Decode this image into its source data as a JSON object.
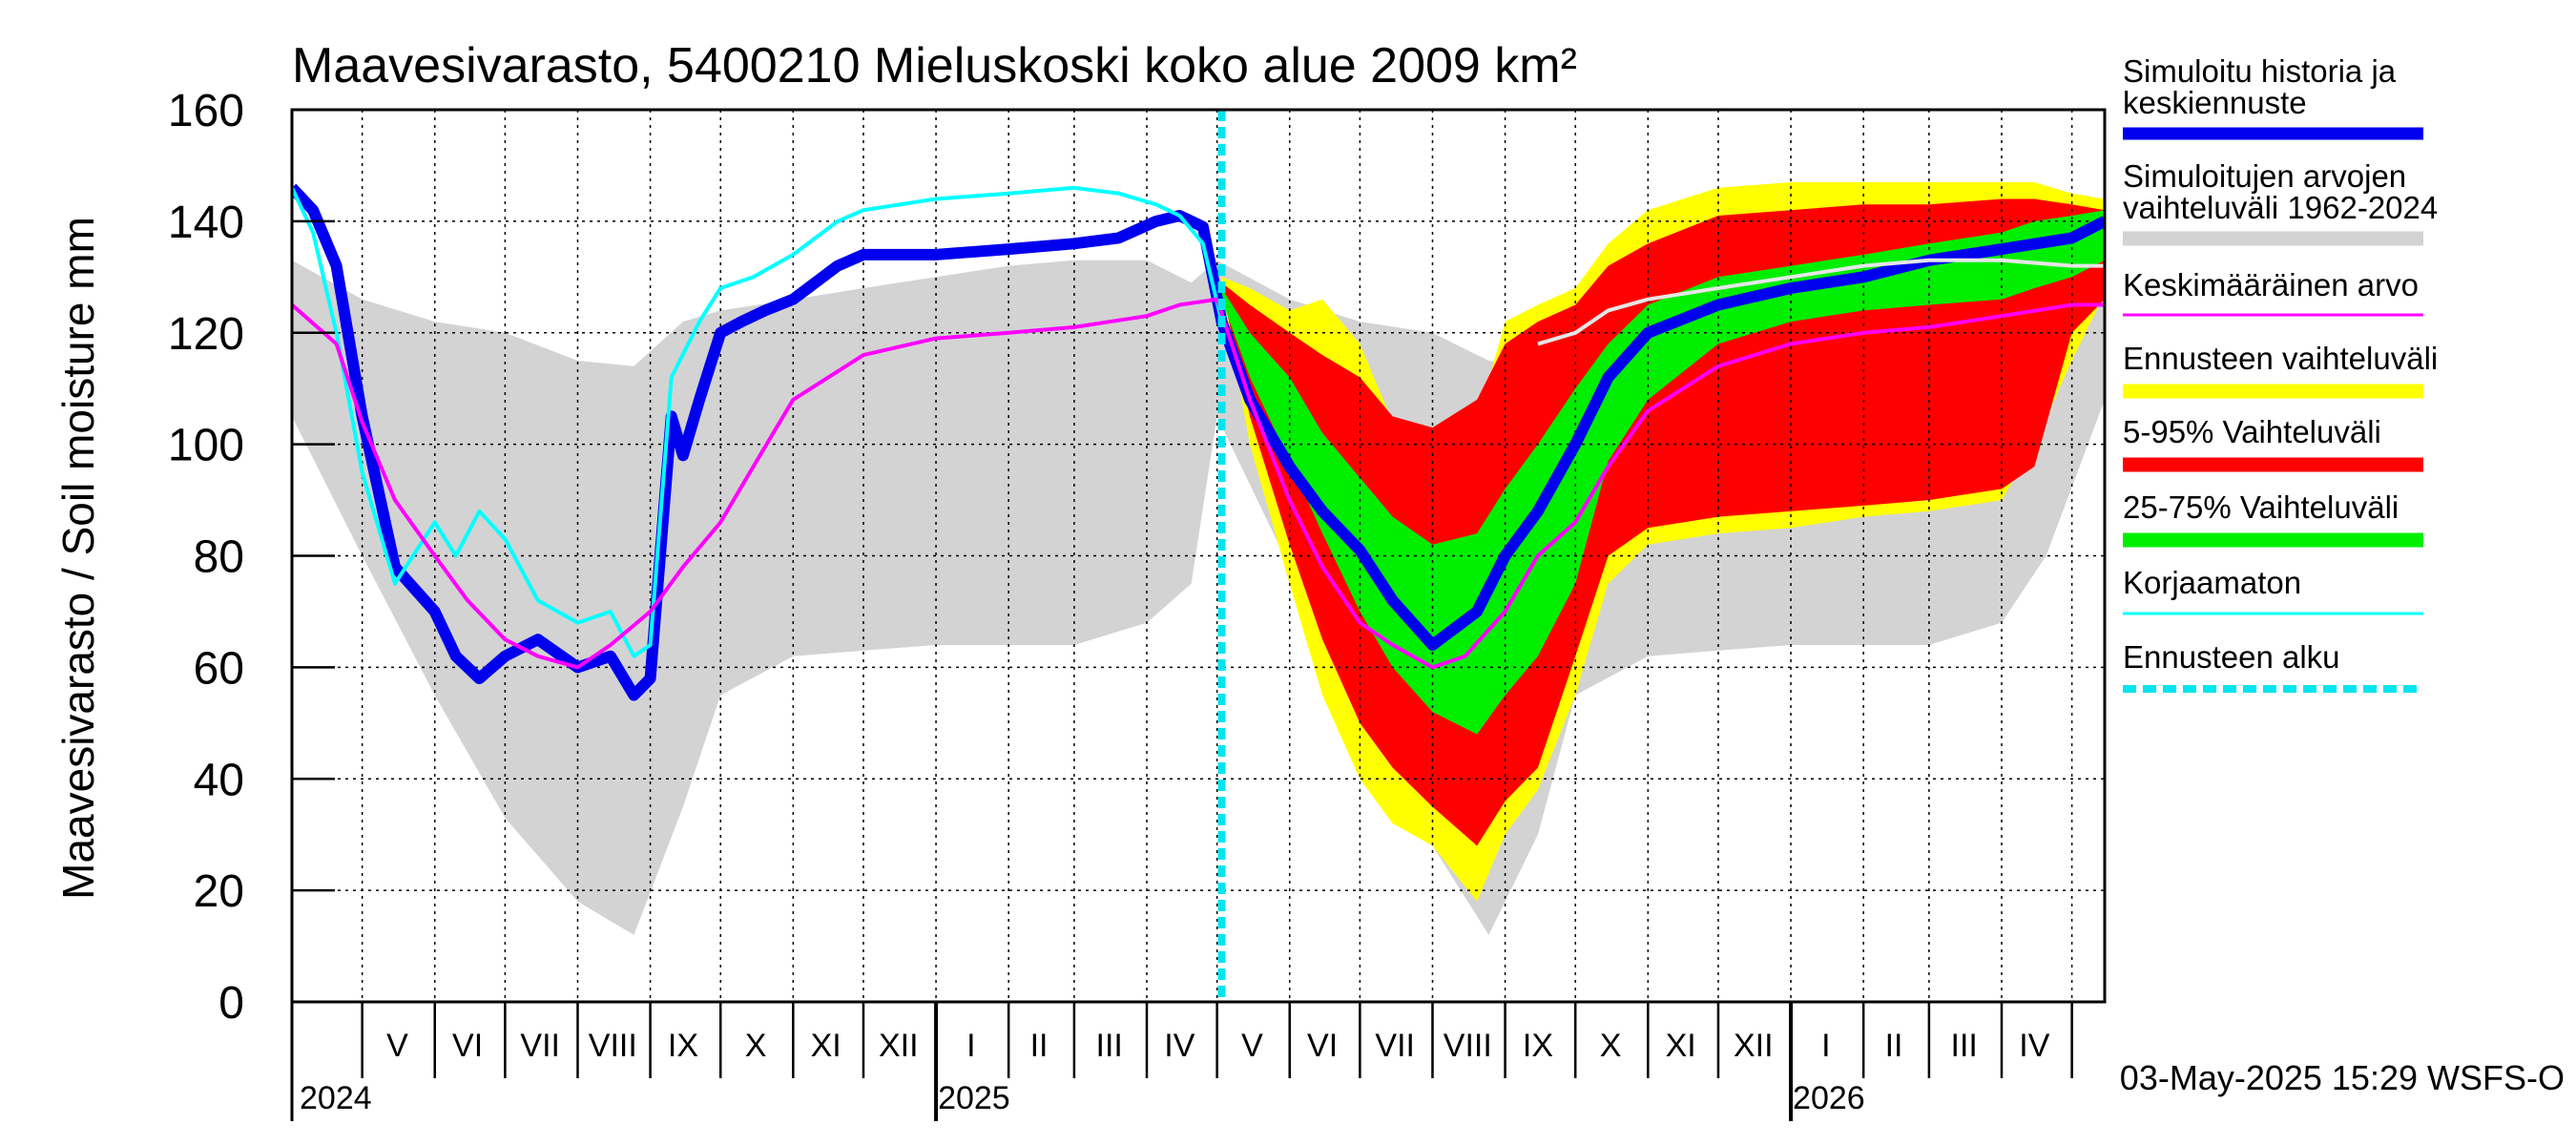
{
  "chart_data": {
    "type": "area",
    "title": "Maavesivarasto, 5400210 Mieluskoski koko alue 2009 km²",
    "ylabel": "Maavesivarasto / Soil moisture   mm",
    "ylim": [
      0,
      160
    ],
    "yticks": [
      0,
      20,
      40,
      60,
      80,
      100,
      120,
      140,
      160
    ],
    "grid": true,
    "legend_position": "right",
    "x_range": [
      "2024-04-01",
      "2026-05-15"
    ],
    "forecast_start": "2025-05-03",
    "timestamp": "03-May-2025 15:29 WSFS-O",
    "x_axis": {
      "month_labels": [
        {
          "label": "V",
          "date": "2024-05-16"
        },
        {
          "label": "VI",
          "date": "2024-06-15"
        },
        {
          "label": "VII",
          "date": "2024-07-16"
        },
        {
          "label": "VIII",
          "date": "2024-08-16"
        },
        {
          "label": "IX",
          "date": "2024-09-15"
        },
        {
          "label": "X",
          "date": "2024-10-16"
        },
        {
          "label": "XI",
          "date": "2024-11-15"
        },
        {
          "label": "XII",
          "date": "2024-12-16"
        },
        {
          "label": "I",
          "date": "2025-01-16"
        },
        {
          "label": "II",
          "date": "2025-02-14"
        },
        {
          "label": "III",
          "date": "2025-03-16"
        },
        {
          "label": "IV",
          "date": "2025-04-15"
        },
        {
          "label": "V",
          "date": "2025-05-16"
        },
        {
          "label": "VI",
          "date": "2025-06-15"
        },
        {
          "label": "VII",
          "date": "2025-07-16"
        },
        {
          "label": "VIII",
          "date": "2025-08-16"
        },
        {
          "label": "IX",
          "date": "2025-09-15"
        },
        {
          "label": "X",
          "date": "2025-10-16"
        },
        {
          "label": "XI",
          "date": "2025-11-15"
        },
        {
          "label": "XII",
          "date": "2025-12-16"
        },
        {
          "label": "I",
          "date": "2026-01-16"
        },
        {
          "label": "II",
          "date": "2026-02-14"
        },
        {
          "label": "III",
          "date": "2026-03-16"
        },
        {
          "label": "IV",
          "date": "2026-04-15"
        }
      ],
      "year_labels": [
        {
          "label": "2024",
          "date": "2024-04-01"
        },
        {
          "label": "2025",
          "date": "2025-01-01"
        },
        {
          "label": "2026",
          "date": "2026-01-01"
        }
      ]
    },
    "legend": [
      {
        "label": "Simuloitu historia ja keskiennuste",
        "color": "#0000ee",
        "kind": "line-thick"
      },
      {
        "label": "Simuloitujen arvojen vaihteluväli 1962-2024",
        "color": "#d3d3d3",
        "kind": "band"
      },
      {
        "label": "Keskimääräinen arvo",
        "color": "#ff00ff",
        "kind": "line"
      },
      {
        "label": "Ennusteen vaihteluväli",
        "color": "#ffff00",
        "kind": "band"
      },
      {
        "label": "5-95% Vaihteluväli",
        "color": "#ff0000",
        "kind": "band"
      },
      {
        "label": "25-75% Vaihteluväli",
        "color": "#00ee00",
        "kind": "band"
      },
      {
        "label": "Korjaamaton",
        "color": "#00ffff",
        "kind": "line"
      },
      {
        "label": "Ennusteen alku",
        "color": "#00e5ee",
        "kind": "dashed"
      }
    ],
    "series": [
      {
        "name": "Simuloitujen arvojen vaihteluväli 1962-2024",
        "type": "band",
        "color": "#d3d3d3",
        "x": [
          "2024-04-01",
          "2024-05-01",
          "2024-06-01",
          "2024-07-01",
          "2024-08-01",
          "2024-08-25",
          "2024-09-15",
          "2024-10-01",
          "2024-11-01",
          "2024-12-01",
          "2025-01-01",
          "2025-02-01",
          "2025-03-01",
          "2025-04-01",
          "2025-04-20",
          "2025-05-01",
          "2025-06-01",
          "2025-07-01",
          "2025-08-01",
          "2025-08-25",
          "2025-09-15",
          "2025-10-01",
          "2025-11-01",
          "2025-12-01",
          "2026-01-01",
          "2026-02-01",
          "2026-03-01",
          "2026-04-01",
          "2026-04-20",
          "2026-05-15"
        ],
        "low": [
          105,
          80,
          55,
          33,
          18,
          12,
          35,
          55,
          62,
          63,
          64,
          64,
          64,
          68,
          75,
          105,
          78,
          55,
          28,
          12,
          30,
          55,
          62,
          63,
          64,
          64,
          64,
          68,
          80,
          108
        ],
        "high": [
          133,
          126,
          122,
          120,
          115,
          114,
          122,
          124,
          126,
          128,
          130,
          132,
          133,
          133,
          129,
          133,
          126,
          122,
          120,
          115,
          114,
          122,
          124,
          126,
          128,
          130,
          132,
          133,
          131,
          132
        ]
      },
      {
        "name": "Ennusteen vaihteluväli",
        "type": "band",
        "color": "#ffff00",
        "x": [
          "2025-05-03",
          "2025-05-15",
          "2025-06-01",
          "2025-06-15",
          "2025-07-01",
          "2025-07-15",
          "2025-08-01",
          "2025-08-20",
          "2025-09-01",
          "2025-09-15",
          "2025-10-01",
          "2025-10-15",
          "2025-11-01",
          "2025-12-01",
          "2026-01-01",
          "2026-02-01",
          "2026-03-01",
          "2026-04-01",
          "2026-04-15",
          "2026-05-01",
          "2026-05-15"
        ],
        "low": [
          128,
          100,
          75,
          55,
          40,
          32,
          28,
          18,
          30,
          38,
          55,
          75,
          82,
          84,
          85,
          87,
          88,
          90,
          100,
          115,
          127
        ],
        "high": [
          130,
          128,
          124,
          126,
          118,
          104,
          100,
          104,
          122,
          125,
          128,
          136,
          142,
          146,
          147,
          147,
          147,
          147,
          147,
          145,
          144
        ]
      },
      {
        "name": "5-95% Vaihteluväli",
        "type": "band",
        "color": "#ff0000",
        "x": [
          "2025-05-03",
          "2025-05-15",
          "2025-06-01",
          "2025-06-15",
          "2025-07-01",
          "2025-07-15",
          "2025-08-01",
          "2025-08-20",
          "2025-09-01",
          "2025-09-15",
          "2025-10-01",
          "2025-10-15",
          "2025-11-01",
          "2025-12-01",
          "2026-01-01",
          "2026-02-01",
          "2026-03-01",
          "2026-04-01",
          "2026-04-15",
          "2026-05-01",
          "2026-05-15"
        ],
        "low": [
          128,
          105,
          82,
          65,
          50,
          42,
          35,
          28,
          36,
          42,
          62,
          80,
          85,
          87,
          88,
          89,
          90,
          92,
          96,
          120,
          126
        ],
        "high": [
          129,
          125,
          120,
          116,
          112,
          105,
          103,
          108,
          118,
          122,
          125,
          132,
          136,
          141,
          142,
          143,
          143,
          144,
          144,
          143,
          142
        ]
      },
      {
        "name": "25-75% Vaihteluväli",
        "type": "band",
        "color": "#00ee00",
        "x": [
          "2025-05-03",
          "2025-05-15",
          "2025-06-01",
          "2025-06-15",
          "2025-07-01",
          "2025-07-15",
          "2025-08-01",
          "2025-08-20",
          "2025-09-01",
          "2025-09-15",
          "2025-10-01",
          "2025-10-15",
          "2025-11-01",
          "2025-12-01",
          "2026-01-01",
          "2026-02-01",
          "2026-03-01",
          "2026-04-01",
          "2026-04-15",
          "2026-05-01",
          "2026-05-15"
        ],
        "low": [
          126,
          112,
          97,
          84,
          70,
          60,
          52,
          48,
          55,
          62,
          75,
          97,
          108,
          118,
          122,
          124,
          125,
          126,
          128,
          130,
          133
        ],
        "high": [
          128,
          120,
          112,
          102,
          94,
          87,
          82,
          84,
          92,
          100,
          110,
          118,
          125,
          130,
          132,
          134,
          136,
          138,
          140,
          141,
          142
        ]
      },
      {
        "name": "Simuloitu historia ja keskiennuste",
        "type": "line",
        "color": "#0000ee",
        "width": 12,
        "x": [
          "2024-04-01",
          "2024-04-10",
          "2024-04-20",
          "2024-05-01",
          "2024-05-15",
          "2024-06-01",
          "2024-06-10",
          "2024-06-20",
          "2024-07-01",
          "2024-07-15",
          "2024-08-01",
          "2024-08-15",
          "2024-08-25",
          "2024-09-01",
          "2024-09-10",
          "2024-09-15",
          "2024-09-22",
          "2024-10-01",
          "2024-10-10",
          "2024-10-20",
          "2024-11-01",
          "2024-11-20",
          "2024-12-01",
          "2025-01-01",
          "2025-02-01",
          "2025-03-01",
          "2025-03-20",
          "2025-04-05",
          "2025-04-15",
          "2025-04-25",
          "2025-05-03",
          "2025-05-15",
          "2025-06-01",
          "2025-06-15",
          "2025-07-01",
          "2025-07-15",
          "2025-08-01",
          "2025-08-20",
          "2025-09-01",
          "2025-09-15",
          "2025-10-01",
          "2025-10-15",
          "2025-11-01",
          "2025-12-01",
          "2026-01-01",
          "2026-02-01",
          "2026-03-01",
          "2026-04-01",
          "2026-05-01",
          "2026-05-15"
        ],
        "y": [
          146,
          142,
          132,
          105,
          78,
          70,
          62,
          58,
          62,
          65,
          60,
          62,
          55,
          58,
          105,
          98,
          108,
          120,
          122,
          124,
          126,
          132,
          134,
          134,
          135,
          136,
          137,
          140,
          141,
          139,
          122,
          108,
          96,
          88,
          81,
          72,
          64,
          70,
          80,
          88,
          100,
          112,
          120,
          125,
          128,
          130,
          133,
          135,
          137,
          140
        ]
      },
      {
        "name": "Korjaamaton",
        "type": "line",
        "color": "#00ffff",
        "width": 4,
        "x": [
          "2024-04-01",
          "2024-04-10",
          "2024-04-20",
          "2024-05-01",
          "2024-05-15",
          "2024-06-01",
          "2024-06-10",
          "2024-06-20",
          "2024-07-01",
          "2024-07-15",
          "2024-08-01",
          "2024-08-15",
          "2024-08-25",
          "2024-09-01",
          "2024-09-10",
          "2024-09-22",
          "2024-10-01",
          "2024-10-15",
          "2024-11-01",
          "2024-11-20",
          "2024-12-01",
          "2025-01-01",
          "2025-02-01",
          "2025-03-01",
          "2025-03-20",
          "2025-04-05",
          "2025-04-15",
          "2025-04-25",
          "2025-05-03"
        ],
        "y": [
          146,
          138,
          120,
          95,
          75,
          86,
          80,
          88,
          83,
          72,
          68,
          70,
          62,
          64,
          112,
          122,
          128,
          130,
          134,
          140,
          142,
          144,
          145,
          146,
          145,
          143,
          141,
          136,
          122
        ]
      },
      {
        "name": "Keskimääräinen arvo",
        "type": "line",
        "color": "#ff00ff",
        "width": 4,
        "x": [
          "2024-04-01",
          "2024-04-20",
          "2024-05-01",
          "2024-05-15",
          "2024-06-01",
          "2024-06-15",
          "2024-07-01",
          "2024-07-15",
          "2024-08-01",
          "2024-08-15",
          "2024-09-01",
          "2024-09-15",
          "2024-10-01",
          "2024-10-15",
          "2024-11-01",
          "2024-12-01",
          "2025-01-01",
          "2025-02-01",
          "2025-03-01",
          "2025-04-01",
          "2025-04-15",
          "2025-05-01",
          "2025-05-15",
          "2025-06-01",
          "2025-06-15",
          "2025-07-01",
          "2025-07-15",
          "2025-08-01",
          "2025-08-15",
          "2025-09-01",
          "2025-09-15",
          "2025-10-01",
          "2025-10-15",
          "2025-11-01",
          "2025-12-01",
          "2026-01-01",
          "2026-02-01",
          "2026-03-01",
          "2026-04-01",
          "2026-05-01",
          "2026-05-15"
        ],
        "y": [
          125,
          118,
          104,
          90,
          80,
          72,
          65,
          62,
          60,
          64,
          70,
          78,
          86,
          96,
          108,
          116,
          119,
          120,
          121,
          123,
          125,
          126,
          108,
          90,
          78,
          68,
          64,
          60,
          62,
          70,
          80,
          86,
          96,
          106,
          114,
          118,
          120,
          121,
          123,
          125,
          125
        ]
      },
      {
        "name": "Keskiarvo (harmaa)",
        "type": "line",
        "color": "#e6e6e6",
        "width": 4,
        "x": [
          "2025-09-15",
          "2025-10-01",
          "2025-10-15",
          "2025-11-01",
          "2025-12-01",
          "2026-01-01",
          "2026-02-01",
          "2026-03-01",
          "2026-04-01",
          "2026-05-01",
          "2026-05-15"
        ],
        "y": [
          118,
          120,
          124,
          126,
          128,
          130,
          132,
          133,
          133,
          132,
          132
        ]
      }
    ]
  }
}
